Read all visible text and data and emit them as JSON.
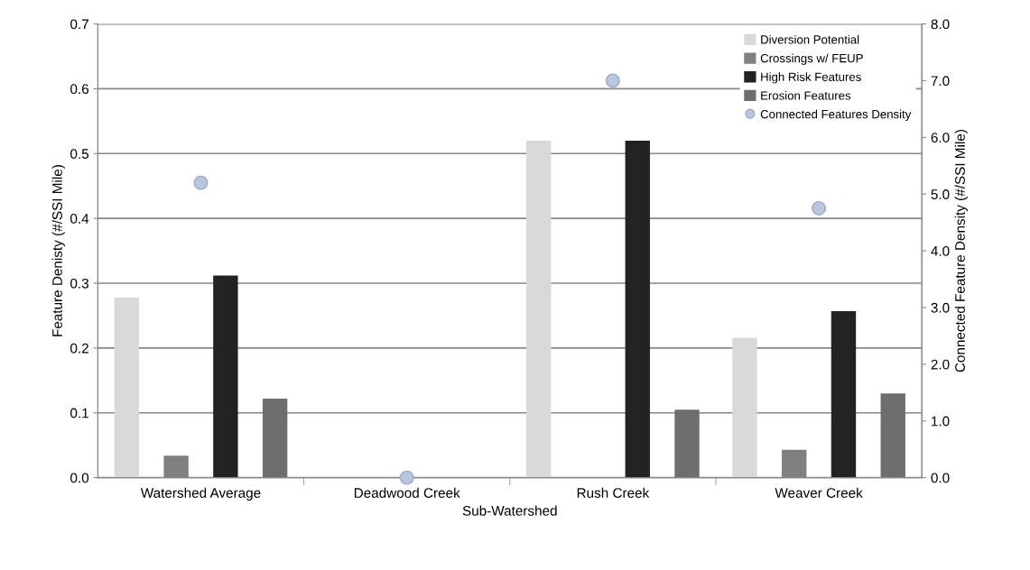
{
  "chart_data": {
    "type": "bar",
    "xlabel": "Sub-Watershed",
    "ylabel": "Feature Denisty (#/SSI Mile)",
    "y2label": "Connected Feature Density (#/SSI Mile)",
    "categories": [
      "Watershed Average",
      "Deadwood Creek",
      "Rush Creek",
      "Weaver Creek"
    ],
    "series": [
      {
        "name": "Diversion Potential",
        "color": "#d9d9d9",
        "values": [
          0.278,
          0,
          0.52,
          0.216
        ]
      },
      {
        "name": "Crossings w/ FEUP",
        "color": "#808080",
        "values": [
          0.034,
          0,
          0,
          0.043
        ]
      },
      {
        "name": "High Risk Features",
        "color": "#222222",
        "values": [
          0.312,
          0,
          0.52,
          0.257
        ]
      },
      {
        "name": "Erosion Features",
        "color": "#6e6e6e",
        "values": [
          0.122,
          0,
          0.105,
          0.13
        ]
      },
      {
        "name": "Connected Features Density",
        "type": "scatter",
        "axis": "y2",
        "color": "#b8c6de",
        "marker": "circle",
        "values": [
          5.2,
          0.0,
          7.0,
          4.75
        ]
      }
    ],
    "ylim": [
      0,
      0.7
    ],
    "yticks": [
      {
        "value": 0,
        "label": "0.0"
      },
      0.1,
      0.2,
      0.3,
      0.4,
      0.5,
      0.6,
      0.7
    ],
    "y2lim": [
      0,
      8
    ],
    "y2ticks": [
      {
        "value": 0,
        "label": "0.0"
      },
      {
        "value": 1,
        "label": "1.0"
      },
      {
        "value": 2,
        "label": "2.0"
      },
      {
        "value": 3,
        "label": "3.0"
      },
      {
        "value": 4,
        "label": "4.0"
      },
      {
        "value": 5,
        "label": "5.0"
      },
      {
        "value": 6,
        "label": "6.0"
      },
      {
        "value": 7,
        "label": "7.0"
      },
      {
        "value": 8,
        "label": "8.0"
      }
    ],
    "grid": "y",
    "legend": "top right"
  }
}
